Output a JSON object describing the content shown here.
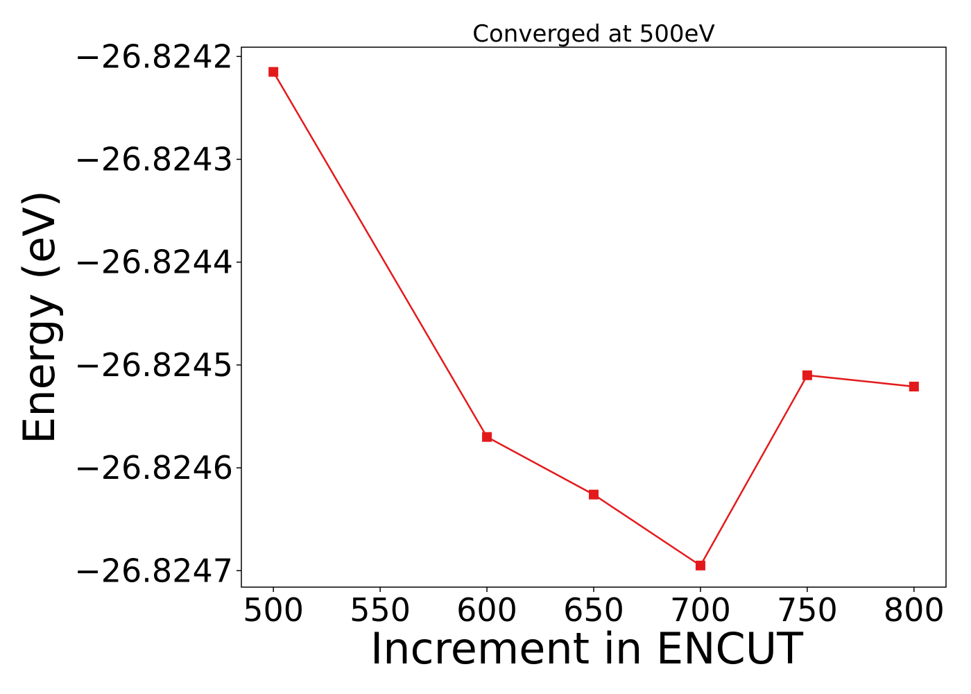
{
  "chart_data": {
    "type": "line",
    "title": "Converged at 500eV",
    "xlabel": "Increment in ENCUT",
    "ylabel": "Energy (eV)",
    "x": [
      500,
      600,
      650,
      700,
      750,
      800
    ],
    "series": [
      {
        "values": [
          -26.824215,
          -26.82457,
          -26.824626,
          -26.824695,
          -26.82451,
          -26.824521
        ],
        "color": "#e31a1c",
        "marker": "square"
      }
    ],
    "xlim": [
      485,
      815
    ],
    "ylim": [
      -26.824716,
      -26.824191
    ],
    "xticks": [
      500,
      550,
      600,
      650,
      700,
      750,
      800
    ],
    "xtick_labels": [
      "500",
      "550",
      "600",
      "650",
      "700",
      "750",
      "800"
    ],
    "yticks": [
      -26.8242,
      -26.8243,
      -26.8244,
      -26.8245,
      -26.8246,
      -26.8247
    ],
    "ytick_labels": [
      "−26.8242",
      "−26.8243",
      "−26.8244",
      "−26.8245",
      "−26.8246",
      "−26.8247"
    ],
    "grid": false,
    "legend": "none"
  }
}
